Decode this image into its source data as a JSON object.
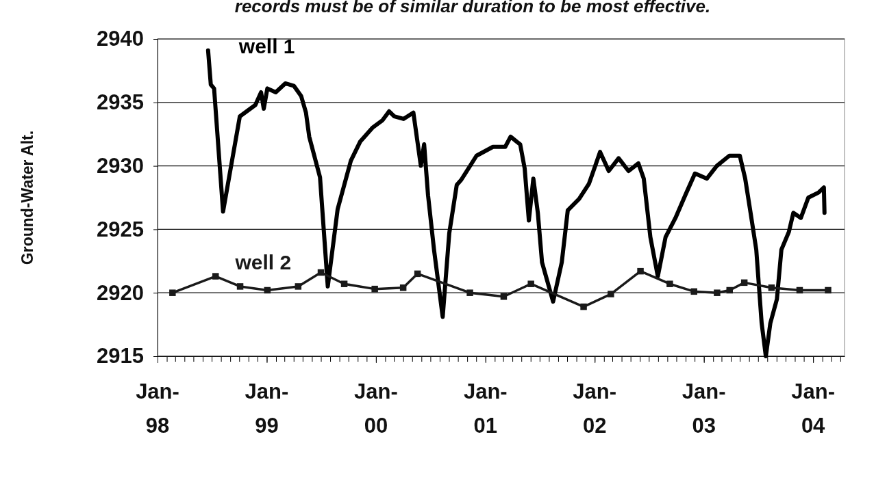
{
  "chart_data": {
    "type": "line",
    "ylabel": "Ground-Water Alt.",
    "annotations": [
      "records must be of similar duration to be most effective."
    ],
    "xlim": [
      "1998-01-01",
      "2004-04-15"
    ],
    "xticks": [
      {
        "value": "1998-01-01",
        "label": "Jan-98"
      },
      {
        "value": "1999-01-01",
        "label": "Jan-99"
      },
      {
        "value": "2000-01-01",
        "label": "Jan-00"
      },
      {
        "value": "2001-01-01",
        "label": "Jan-01"
      },
      {
        "value": "2002-01-01",
        "label": "Jan-02"
      },
      {
        "value": "2003-01-01",
        "label": "Jan-03"
      },
      {
        "value": "2004-01-01",
        "label": "Jan-04"
      }
    ],
    "ylim": [
      2915,
      2940
    ],
    "yticks": [
      2915,
      2920,
      2925,
      2930,
      2935,
      2940
    ],
    "grid": "y",
    "series": [
      {
        "name": "well 1",
        "color": "#000000",
        "marker": "none",
        "x": [
          "1998-06-19",
          "1998-06-28",
          "1998-07-09",
          "1998-08-08",
          "1998-10-03",
          "1998-11-24",
          "1998-12-13",
          "1998-12-22",
          "1999-01-03",
          "1999-01-31",
          "1999-03-04",
          "1999-04-02",
          "1999-04-26",
          "1999-05-12",
          "1999-05-23",
          "1999-06-28",
          "1999-07-24",
          "1999-08-26",
          "1999-09-17",
          "1999-10-09",
          "1999-11-09",
          "1999-12-20",
          "2000-01-23",
          "2000-02-14",
          "2000-03-02",
          "2000-04-02",
          "2000-05-05",
          "2000-05-30",
          "2000-06-10",
          "2000-06-23",
          "2000-07-13",
          "2000-08-11",
          "2000-09-02",
          "2000-09-27",
          "2000-10-12",
          "2000-12-02",
          "2001-01-26",
          "2001-03-08",
          "2001-03-26",
          "2001-04-16",
          "2001-04-27",
          "2001-05-12",
          "2001-05-26",
          "2001-06-10",
          "2001-06-25",
          "2001-07-09",
          "2001-08-15",
          "2001-09-13",
          "2001-10-03",
          "2001-11-10",
          "2001-12-13",
          "2002-01-19",
          "2002-02-17",
          "2002-03-22",
          "2002-04-24",
          "2002-05-27",
          "2002-06-14",
          "2002-07-06",
          "2002-07-31",
          "2002-08-26",
          "2002-09-28",
          "2002-10-31",
          "2002-12-02",
          "2003-01-11",
          "2003-02-13",
          "2003-03-27",
          "2003-05-01",
          "2003-05-19",
          "2003-06-06",
          "2003-06-25",
          "2003-07-13",
          "2003-07-27",
          "2003-08-11",
          "2003-09-02",
          "2003-09-17",
          "2003-10-12",
          "2003-10-27",
          "2003-11-21",
          "2003-12-16",
          "2004-01-19",
          "2004-02-06",
          "2004-02-08"
        ],
        "values": [
          2939.1,
          2936.4,
          2936.1,
          2926.4,
          2933.9,
          2934.8,
          2935.8,
          2934.5,
          2936.1,
          2935.8,
          2936.5,
          2936.3,
          2935.5,
          2934.2,
          2932.3,
          2929.1,
          2920.5,
          2926.6,
          2928.5,
          2930.4,
          2931.9,
          2933.0,
          2933.6,
          2934.3,
          2933.9,
          2933.7,
          2934.2,
          2930.0,
          2931.7,
          2927.7,
          2923.4,
          2918.1,
          2924.7,
          2928.5,
          2928.9,
          2930.8,
          2931.5,
          2931.5,
          2932.3,
          2931.9,
          2931.7,
          2929.8,
          2925.7,
          2929.0,
          2926.3,
          2922.4,
          2919.3,
          2922.4,
          2926.5,
          2927.4,
          2928.6,
          2931.1,
          2929.6,
          2930.6,
          2929.6,
          2930.2,
          2929.0,
          2924.4,
          2921.3,
          2924.4,
          2925.9,
          2927.7,
          2929.4,
          2929.0,
          2930.0,
          2930.8,
          2930.8,
          2929.0,
          2926.3,
          2923.4,
          2917.6,
          2915.0,
          2917.6,
          2919.5,
          2923.4,
          2924.8,
          2926.3,
          2925.9,
          2927.5,
          2927.9,
          2928.3,
          2926.3
        ]
      },
      {
        "name": "well 2",
        "color": "#1a1a1a",
        "marker": "square",
        "x": [
          "1998-02-20",
          "1998-07-14",
          "1998-10-04",
          "1999-01-03",
          "1999-04-16",
          "1999-07-01",
          "1999-09-17",
          "1999-12-28",
          "2000-04-01",
          "2000-05-19",
          "2000-11-10",
          "2001-03-03",
          "2001-06-02",
          "2001-11-25",
          "2002-02-24",
          "2002-06-03",
          "2002-09-09",
          "2002-11-29",
          "2003-02-14",
          "2003-03-28",
          "2003-05-16",
          "2003-08-15",
          "2003-11-17",
          "2004-02-20"
        ],
        "values": [
          2920.0,
          2921.3,
          2920.5,
          2920.2,
          2920.5,
          2921.6,
          2920.7,
          2920.3,
          2920.4,
          2921.5,
          2920.0,
          2919.7,
          2920.7,
          2918.9,
          2919.9,
          2921.7,
          2920.7,
          2920.1,
          2920.0,
          2920.2,
          2920.8,
          2920.4,
          2920.2,
          2920.2
        ]
      }
    ]
  }
}
